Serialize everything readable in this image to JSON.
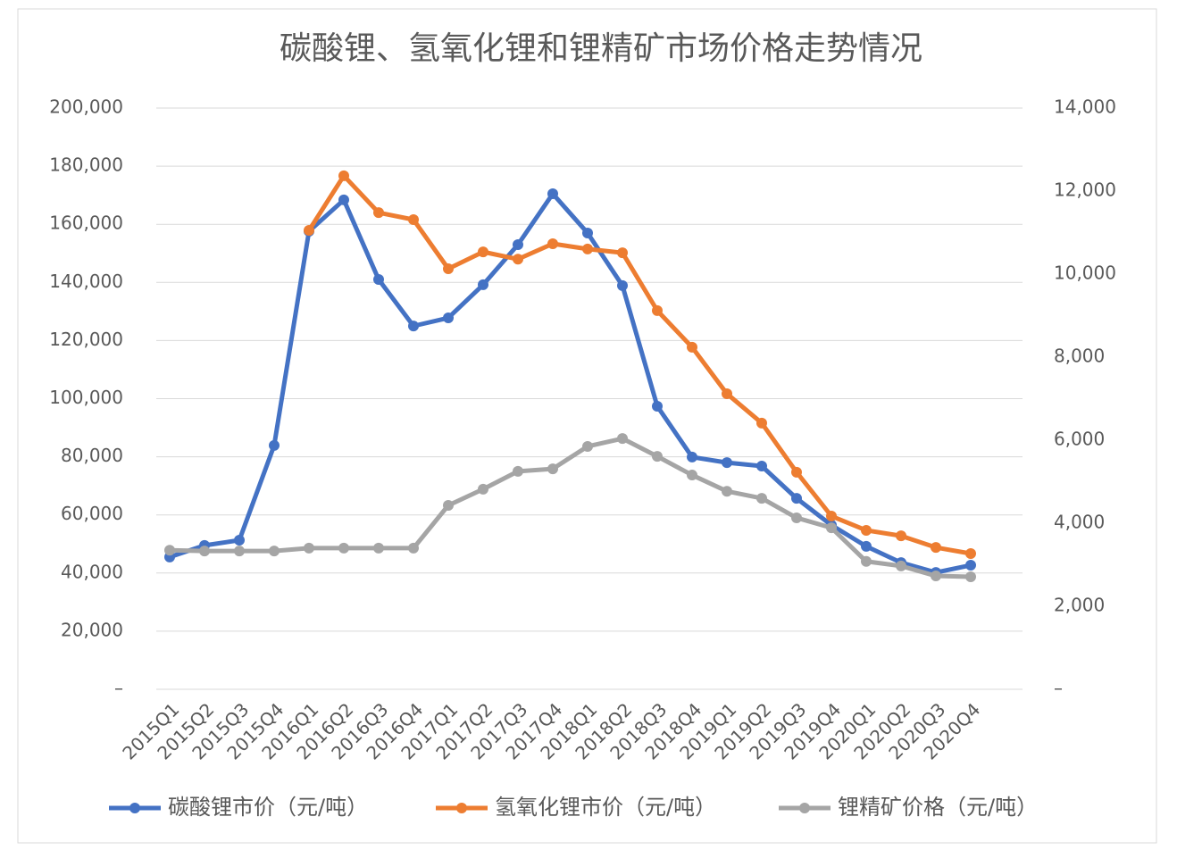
{
  "chart_data": {
    "type": "line",
    "title": "碳酸锂、氢氧化锂和锂精矿市场价格走势情况",
    "categories": [
      "2015Q1",
      "2015Q2",
      "2015Q3",
      "2015Q4",
      "2016Q1",
      "2016Q2",
      "2016Q3",
      "2016Q4",
      "2017Q1",
      "2017Q2",
      "2017Q3",
      "2017Q4",
      "2018Q1",
      "2018Q2",
      "2018Q3",
      "2018Q4",
      "2019Q1",
      "2019Q2",
      "2019Q3",
      "2019Q4",
      "2020Q1",
      "2020Q2",
      "2020Q3",
      "2020Q4"
    ],
    "series": [
      {
        "name": "碳酸锂市价（元/吨）",
        "color": "#4472c4",
        "values": [
          45500,
          49500,
          51300,
          83900,
          157600,
          168400,
          141000,
          125000,
          127800,
          139200,
          153000,
          170500,
          157000,
          138900,
          97400,
          79900,
          78000,
          76800,
          65700,
          56500,
          49200,
          43600,
          40200,
          42700
        ]
      },
      {
        "name": "氢氧化锂市价（元/吨）",
        "color": "#ed7d31",
        "values": [
          null,
          null,
          null,
          null,
          157900,
          176700,
          164000,
          161600,
          144700,
          150500,
          148000,
          153300,
          151500,
          150200,
          130300,
          117700,
          101700,
          91600,
          74700,
          59600,
          54700,
          52800,
          48800,
          46700
        ]
      },
      {
        "name": "锂精矿价格（元/吨）",
        "color": "#a5a5a5",
        "axis": "y2",
        "values": [
          3350,
          3330,
          3330,
          3330,
          3400,
          3400,
          3400,
          3400,
          4430,
          4820,
          5250,
          5310,
          5850,
          6040,
          5610,
          5160,
          4770,
          4600,
          4130,
          3890,
          3080,
          2970,
          2730,
          2710
        ]
      }
    ],
    "ylim": [
      0,
      200000
    ],
    "yticks": [
      {
        "value": 0,
        "label": "–"
      },
      {
        "value": 20000,
        "label": "20,000"
      },
      {
        "value": 40000,
        "label": "40,000"
      },
      {
        "value": 60000,
        "label": "60,000"
      },
      {
        "value": 80000,
        "label": "80,000"
      },
      {
        "value": 100000,
        "label": "100,000"
      },
      {
        "value": 120000,
        "label": "120,000"
      },
      {
        "value": 140000,
        "label": "140,000"
      },
      {
        "value": 160000,
        "label": "160,000"
      },
      {
        "value": 180000,
        "label": "180,000"
      },
      {
        "value": 200000,
        "label": "200,000"
      }
    ],
    "y2lim": [
      0,
      14000
    ],
    "y2ticks": [
      {
        "value": 0,
        "label": "–"
      },
      {
        "value": 2000,
        "label": "2,000"
      },
      {
        "value": 4000,
        "label": "4,000"
      },
      {
        "value": 6000,
        "label": "6,000"
      },
      {
        "value": 8000,
        "label": "8,000"
      },
      {
        "value": 10000,
        "label": "10,000"
      },
      {
        "value": 12000,
        "label": "12,000"
      },
      {
        "value": 14000,
        "label": "14,000"
      }
    ],
    "grid": true,
    "legend": "bottom"
  }
}
